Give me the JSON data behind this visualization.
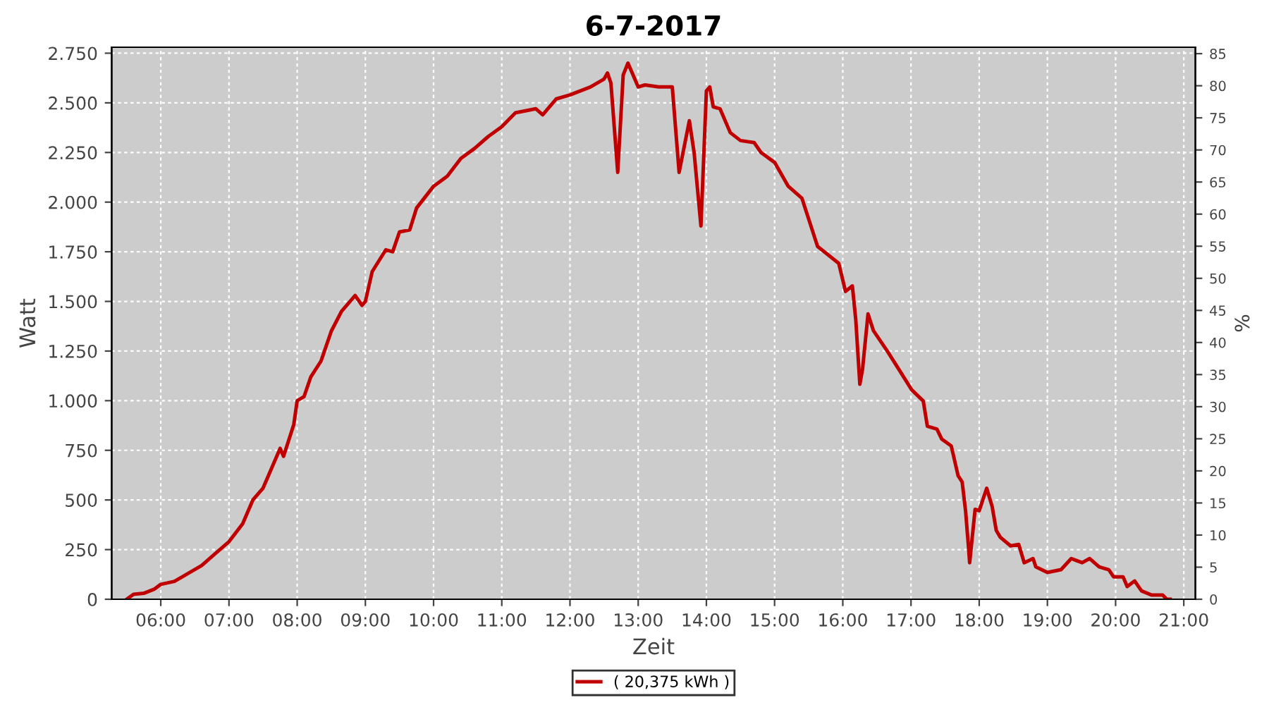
{
  "chart_data": {
    "type": "line",
    "title": "6-7-2017",
    "xlabel": "Zeit",
    "ylabel": "Watt",
    "y2label": "%",
    "x": [
      5.5,
      5.6,
      5.75,
      5.9,
      6.0,
      6.2,
      6.4,
      6.6,
      6.8,
      7.0,
      7.2,
      7.35,
      7.5,
      7.6,
      7.75,
      7.8,
      7.95,
      8.0,
      8.1,
      8.2,
      8.35,
      8.5,
      8.65,
      8.85,
      8.95,
      9.0,
      9.1,
      9.3,
      9.4,
      9.5,
      9.65,
      9.75,
      10.0,
      10.2,
      10.4,
      10.6,
      10.8,
      11.0,
      11.2,
      11.5,
      11.6,
      11.8,
      12.0,
      12.3,
      12.5,
      12.55,
      12.6,
      12.7,
      12.78,
      12.85,
      13.0,
      13.1,
      13.3,
      13.5,
      13.6,
      13.75,
      13.82,
      13.92,
      14.0,
      14.05,
      14.1,
      14.2,
      14.35,
      14.5,
      14.7,
      14.8,
      15.0,
      15.2,
      15.4,
      15.63,
      15.94,
      16.04,
      16.14,
      16.19,
      16.25,
      16.29,
      16.37,
      16.45,
      16.66,
      17.01,
      17.18,
      17.24,
      17.38,
      17.45,
      17.59,
      17.69,
      17.75,
      17.8,
      17.84,
      17.86,
      17.94,
      18.0,
      18.11,
      18.19,
      18.25,
      18.31,
      18.46,
      18.58,
      18.66,
      18.79,
      18.83,
      19.0,
      19.2,
      19.35,
      19.51,
      19.62,
      19.76,
      19.9,
      19.97,
      20.11,
      20.17,
      20.28,
      20.38,
      20.53,
      20.69,
      20.75,
      20.8
    ],
    "series": [
      {
        "name": "( 20,375 kWh )",
        "color": "#c00000",
        "values": [
          0,
          25,
          30,
          50,
          75,
          90,
          130,
          170,
          230,
          290,
          380,
          500,
          560,
          640,
          760,
          720,
          880,
          1000,
          1020,
          1120,
          1200,
          1350,
          1450,
          1530,
          1480,
          1500,
          1650,
          1760,
          1750,
          1850,
          1860,
          1970,
          2080,
          2130,
          2220,
          2270,
          2330,
          2380,
          2450,
          2470,
          2440,
          2520,
          2540,
          2580,
          2620,
          2650,
          2600,
          2150,
          2640,
          2700,
          2580,
          2590,
          2580,
          2580,
          2150,
          2410,
          2250,
          1880,
          2560,
          2580,
          2480,
          2470,
          2350,
          2310,
          2300,
          2250,
          2200,
          2080,
          2020,
          1777,
          1692,
          1550,
          1578,
          1409,
          1083,
          1160,
          1437,
          1352,
          1246,
          1055,
          998,
          871,
          857,
          807,
          772,
          623,
          591,
          446,
          276,
          184,
          453,
          446,
          559,
          467,
          347,
          312,
          269,
          276,
          184,
          205,
          163,
          135,
          149,
          205,
          184,
          205,
          163,
          149,
          113,
          113,
          64,
          92,
          42,
          21,
          21,
          0,
          0
        ]
      }
    ],
    "xlim": [
      5.28,
      21.17
    ],
    "ylim": [
      0,
      2780
    ],
    "y2lim": [
      0,
      86
    ],
    "xticks": [
      {
        "value": 6,
        "label": "06:00"
      },
      {
        "value": 7,
        "label": "07:00"
      },
      {
        "value": 8,
        "label": "08:00"
      },
      {
        "value": 9,
        "label": "09:00"
      },
      {
        "value": 10,
        "label": "10:00"
      },
      {
        "value": 11,
        "label": "11:00"
      },
      {
        "value": 12,
        "label": "12:00"
      },
      {
        "value": 13,
        "label": "13:00"
      },
      {
        "value": 14,
        "label": "14:00"
      },
      {
        "value": 15,
        "label": "15:00"
      },
      {
        "value": 16,
        "label": "16:00"
      },
      {
        "value": 17,
        "label": "17:00"
      },
      {
        "value": 18,
        "label": "18:00"
      },
      {
        "value": 19,
        "label": "19:00"
      },
      {
        "value": 20,
        "label": "20:00"
      },
      {
        "value": 21,
        "label": "21:00"
      }
    ],
    "yticks": [
      0,
      250,
      500,
      750,
      {
        "value": 1000,
        "label": "1.000"
      },
      {
        "value": 1250,
        "label": "1.250"
      },
      {
        "value": 1500,
        "label": "1.500"
      },
      {
        "value": 1750,
        "label": "1.750"
      },
      {
        "value": 2000,
        "label": "2.000"
      },
      {
        "value": 2250,
        "label": "2.250"
      },
      {
        "value": 2500,
        "label": "2.500"
      },
      {
        "value": 2750,
        "label": "2.750"
      }
    ],
    "y2ticks": [
      0,
      5,
      10,
      15,
      20,
      25,
      30,
      35,
      40,
      45,
      50,
      55,
      60,
      65,
      70,
      75,
      80,
      85
    ],
    "grid": true,
    "legend": "bottom",
    "marker": "none",
    "line_style": "solid"
  }
}
